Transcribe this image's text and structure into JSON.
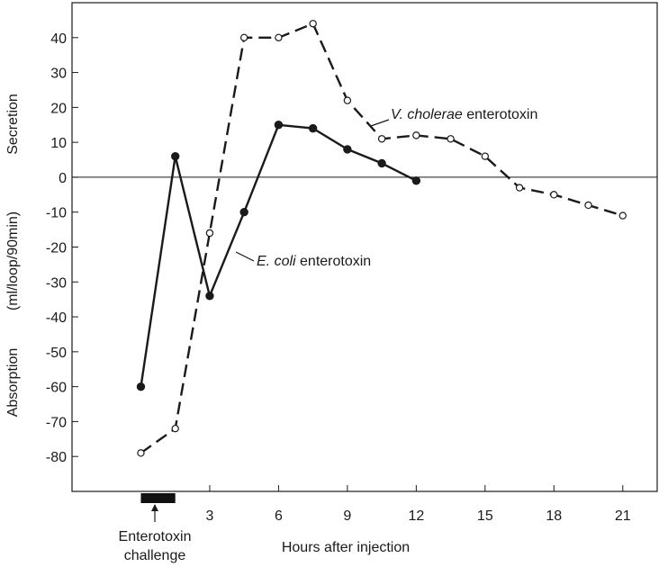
{
  "chart_data": {
    "type": "line",
    "title": "",
    "xlabel": "Hours after injection",
    "ylabel_top": "Secretion",
    "ylabel_middle": "(ml/loop/90min)",
    "ylabel_bottom": "Absorption",
    "xlim": [
      -3,
      22.5
    ],
    "ylim": [
      -90,
      50
    ],
    "x_ticks": [
      3,
      6,
      9,
      12,
      15,
      18,
      21
    ],
    "y_ticks": [
      40,
      30,
      20,
      10,
      0,
      -10,
      -20,
      -30,
      -40,
      -50,
      -60,
      -70,
      -80
    ],
    "zero_line": true,
    "grid": false,
    "legend": "none",
    "series": [
      {
        "name": "V. cholerae enterotoxin",
        "style": "dashed",
        "marker": "open-circle",
        "color": "#1a1a1a",
        "x": [
          0,
          1.5,
          3,
          4.5,
          6,
          7.5,
          9,
          10.5,
          12,
          13.5,
          15,
          16.5,
          18,
          19.5,
          21
        ],
        "y": [
          -79,
          -72,
          -16,
          40,
          40,
          44,
          22,
          11,
          12,
          11,
          6,
          -3,
          -5,
          -8,
          -11
        ]
      },
      {
        "name": "E. coli enterotoxin",
        "style": "solid",
        "marker": "filled-circle",
        "color": "#1a1a1a",
        "x": [
          0,
          1.5,
          3,
          4.5,
          6,
          7.5,
          9,
          10.5,
          12
        ],
        "y": [
          -60,
          6,
          -34,
          -10,
          15,
          14,
          8,
          4,
          -1
        ]
      }
    ],
    "annotations": [
      {
        "series": 0,
        "italic": "V. cholerae",
        "rest": " enterotoxin"
      },
      {
        "series": 1,
        "italic": "E. coli",
        "rest": " enterotoxin"
      }
    ],
    "challenge": {
      "x_start": 0,
      "x_end": 1.5,
      "label_line1": "Enterotoxin",
      "label_line2": "challenge"
    }
  }
}
